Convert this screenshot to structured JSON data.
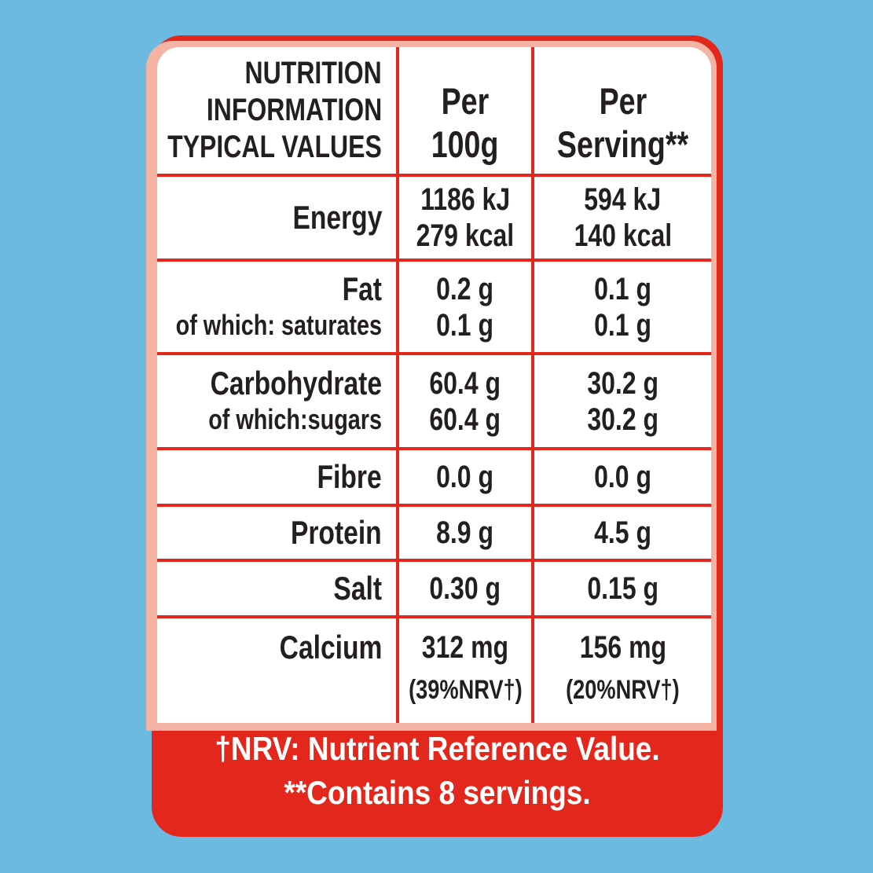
{
  "header": {
    "title_lines": [
      "NUTRITION",
      "INFORMATION",
      "TYPICAL VALUES"
    ],
    "per_100g": [
      "Per",
      "100g"
    ],
    "per_serving": [
      "Per",
      "Serving**"
    ]
  },
  "rows": [
    {
      "label": [
        "Energy"
      ],
      "per_100g": [
        "1186 kJ",
        "279 kcal"
      ],
      "per_serving": [
        "594 kJ",
        "140 kcal"
      ]
    },
    {
      "label": [
        "Fat",
        "of which: saturates"
      ],
      "per_100g": [
        "0.2 g",
        "0.1 g"
      ],
      "per_serving": [
        "0.1 g",
        "0.1 g"
      ]
    },
    {
      "label": [
        "Carbohydrate",
        "of which:sugars"
      ],
      "per_100g": [
        "60.4 g",
        "60.4 g"
      ],
      "per_serving": [
        "30.2 g",
        "30.2 g"
      ]
    },
    {
      "label": [
        "Fibre"
      ],
      "per_100g": [
        "0.0 g"
      ],
      "per_serving": [
        "0.0 g"
      ]
    },
    {
      "label": [
        "Protein"
      ],
      "per_100g": [
        "8.9 g"
      ],
      "per_serving": [
        "4.5 g"
      ]
    },
    {
      "label": [
        "Salt"
      ],
      "per_100g": [
        "0.30 g"
      ],
      "per_serving": [
        "0.15 g"
      ]
    },
    {
      "label": [
        "Calcium"
      ],
      "per_100g": [
        "312 mg",
        "(39%NRV†)"
      ],
      "per_serving": [
        "156 mg",
        "(20%NRV†)"
      ]
    }
  ],
  "footnotes": [
    "†NRV: Nutrient Reference Value.",
    "**Contains 8 servings."
  ]
}
